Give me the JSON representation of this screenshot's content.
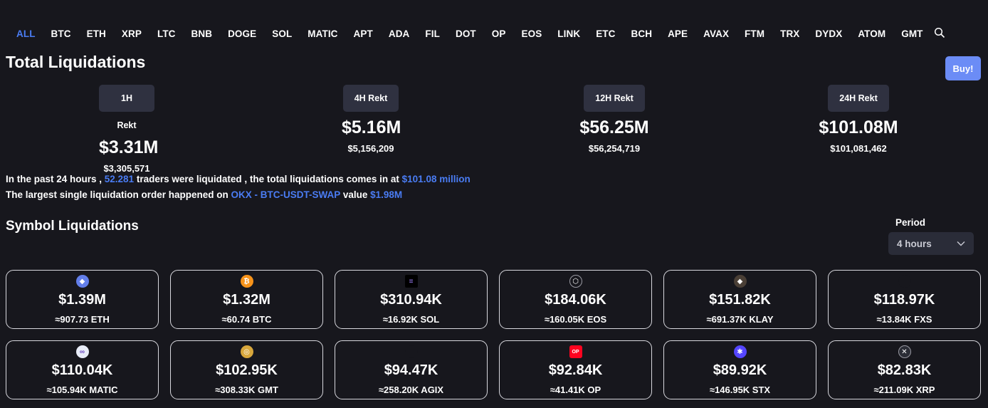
{
  "tabs": [
    {
      "label": "ALL",
      "active": true
    },
    {
      "label": "BTC"
    },
    {
      "label": "ETH"
    },
    {
      "label": "XRP"
    },
    {
      "label": "LTC"
    },
    {
      "label": "BNB"
    },
    {
      "label": "DOGE"
    },
    {
      "label": "SOL"
    },
    {
      "label": "MATIC"
    },
    {
      "label": "APT"
    },
    {
      "label": "ADA"
    },
    {
      "label": "FIL"
    },
    {
      "label": "DOT"
    },
    {
      "label": "OP"
    },
    {
      "label": "EOS"
    },
    {
      "label": "LINK"
    },
    {
      "label": "ETC"
    },
    {
      "label": "BCH"
    },
    {
      "label": "APE"
    },
    {
      "label": "AVAX"
    },
    {
      "label": "FTM"
    },
    {
      "label": "TRX"
    },
    {
      "label": "DYDX"
    },
    {
      "label": "ATOM"
    },
    {
      "label": "GMT"
    }
  ],
  "total": {
    "title": "Total Liquidations",
    "buy_label": "Buy!",
    "stats": [
      {
        "badge": "1H Rekt",
        "big": "$3.31M",
        "small": "$3,305,571"
      },
      {
        "badge": "4H Rekt",
        "big": "$5.16M",
        "small": "$5,156,209"
      },
      {
        "badge": "12H Rekt",
        "big": "$56.25M",
        "small": "$56,254,719"
      },
      {
        "badge": "24H Rekt",
        "big": "$101.08M",
        "small": "$101,081,462"
      }
    ]
  },
  "summary": {
    "l1_a": "In the past 24 hours , ",
    "l1_traders": "52.281",
    "l1_b": " traders were liquidated , the total liquidations comes in at ",
    "l1_total": "$101.08 million",
    "l2_a": "The largest single liquidation order happened on ",
    "l2_pair": "OKX - BTC-USDT-SWAP",
    "l2_b": " value ",
    "l2_value": "$1.98M"
  },
  "symbol": {
    "title": "Symbol Liquidations",
    "period_label": "Period",
    "period_value": "4 hours",
    "cards": [
      {
        "amount": "$1.39M",
        "qty": "≈907.73 ETH",
        "icon": "eth-icon",
        "color": "#627eea",
        "glyph": "◆"
      },
      {
        "amount": "$1.32M",
        "qty": "≈60.74 BTC",
        "icon": "btc-icon",
        "color": "#f7931a",
        "glyph": "₿"
      },
      {
        "amount": "$310.94K",
        "qty": "≈16.92K SOL",
        "icon": "sol-icon",
        "color": "#000000",
        "glyph": "≡"
      },
      {
        "amount": "$184.06K",
        "qty": "≈160.05K EOS",
        "icon": "eos-icon",
        "color": "#17171d",
        "glyph": "⬡"
      },
      {
        "amount": "$151.82K",
        "qty": "≈691.37K KLAY",
        "icon": "klay-icon",
        "color": "#4a3f36",
        "glyph": "◆"
      },
      {
        "amount": "$118.97K",
        "qty": "≈13.84K FXS",
        "icon": "fxs-icon",
        "color": "#17171d",
        "glyph": ""
      },
      {
        "amount": "$110.04K",
        "qty": "≈105.94K MATIC",
        "icon": "matic-icon",
        "color": "#e8ecf8",
        "glyph": "∞"
      },
      {
        "amount": "$102.95K",
        "qty": "≈308.33K GMT",
        "icon": "gmt-icon",
        "color": "#d8a73c",
        "glyph": "◎"
      },
      {
        "amount": "$94.47K",
        "qty": "≈258.20K AGIX",
        "icon": "agix-icon",
        "color": "#17171d",
        "glyph": ""
      },
      {
        "amount": "$92.84K",
        "qty": "≈41.41K OP",
        "icon": "op-icon",
        "color": "#ff0420",
        "glyph": "OP"
      },
      {
        "amount": "$89.92K",
        "qty": "≈146.95K STX",
        "icon": "stx-icon",
        "color": "#5546ff",
        "glyph": "✱"
      },
      {
        "amount": "$82.83K",
        "qty": "≈211.09K XRP",
        "icon": "xrp-icon",
        "color": "#2b2d36",
        "glyph": "✕"
      }
    ]
  },
  "colors": {
    "background": "#17171d",
    "accent": "#4a7cf3",
    "buy_button": "#6b8cf6",
    "badge": "#2f3140",
    "card_border": "#d8d8de"
  }
}
